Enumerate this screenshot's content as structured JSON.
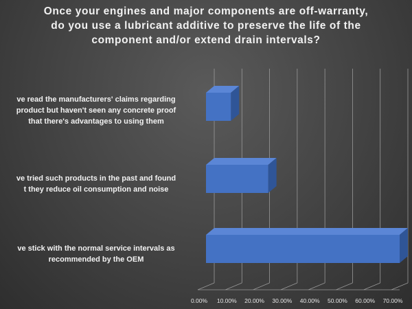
{
  "chart_data": {
    "type": "bar",
    "orientation": "horizontal",
    "title": "Once your engines and major components are off-warranty,\ndo you use a lubricant additive to preserve the life of the\ncomponent and/or extend drain intervals?",
    "categories": [
      [
        "ve read the manufacturers' claims regarding",
        "product but haven't seen any concrete proof",
        "that there's advantages to using them"
      ],
      [
        "ve tried such products in the past and found",
        "t they reduce oil consumption and noise"
      ],
      [
        "ve stick with the normal service intervals as",
        "recommended by the OEM"
      ]
    ],
    "values": [
      0.09,
      0.225,
      0.7
    ],
    "xlim": [
      0,
      0.7
    ],
    "xticks": [
      "0.00%",
      "10.00%",
      "20.00%",
      "30.00%",
      "40.00%",
      "50.00%",
      "60.00%",
      "70.00%"
    ],
    "grid": true,
    "style": "3d-bar",
    "colors": {
      "bar_front": "#4472c4",
      "bar_top": "#5b86d6",
      "bar_side": "#2f5597",
      "grid": "#9a9a9a",
      "text": "#f2f2f2"
    }
  }
}
